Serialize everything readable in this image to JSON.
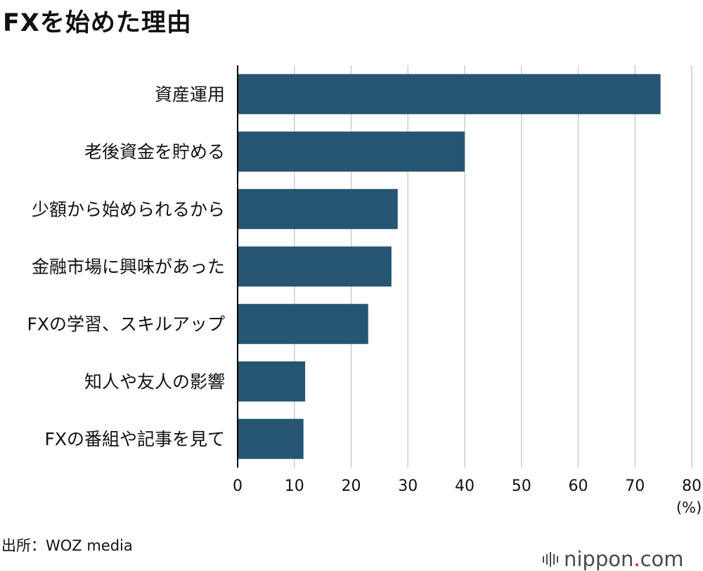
{
  "title": "FXを始めた理由",
  "source": "出所：WOZ media",
  "logo": {
    "text_main": "nippon",
    "dot": ".",
    "text_tail": "com"
  },
  "colors": {
    "bar": "#255573",
    "grid": "#cccccc",
    "axis": "#000000"
  },
  "chart_data": {
    "type": "bar",
    "orientation": "horizontal",
    "categories": [
      "資産運用",
      "老後資金を貯める",
      "少額から始められるから",
      "金融市場に興味があった",
      "FXの学習、スキルアップ",
      "知人や友人の影響",
      "FXの番組や記事を見て"
    ],
    "values": [
      74.5,
      40.0,
      28.2,
      27.1,
      23.0,
      11.9,
      11.6
    ],
    "xlim": [
      0,
      80
    ],
    "xticks": [
      "0",
      "10",
      "20",
      "30",
      "40",
      "50",
      "60",
      "70",
      "80"
    ],
    "xunit": "(%)",
    "grid": true
  }
}
